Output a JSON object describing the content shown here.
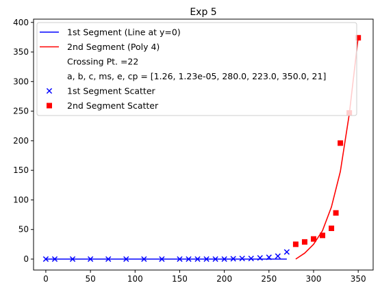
{
  "chart_data": {
    "type": "scatter",
    "title": "Exp 5",
    "xlabel": "",
    "ylabel": "",
    "xlim": [
      -13.75,
      366.75
    ],
    "ylim": [
      -18.5,
      405.5
    ],
    "xticks": [
      0,
      50,
      100,
      150,
      200,
      250,
      300,
      350
    ],
    "yticks": [
      0,
      50,
      100,
      150,
      200,
      250,
      300,
      350,
      400
    ],
    "grid": false,
    "legend_position": "top-left",
    "series": [
      {
        "name": "1st Segment (Line at y=0)",
        "kind": "line",
        "color": "#0000ff",
        "x": [
          0,
          270
        ],
        "y": [
          0,
          0
        ]
      },
      {
        "name": "2nd Segment (Poly 4)",
        "kind": "line",
        "color": "#ff0000",
        "x": [
          280,
          290,
          300,
          310,
          320,
          330,
          340,
          345,
          350
        ],
        "y": [
          0,
          10,
          25,
          48,
          88,
          148,
          245,
          310,
          375
        ]
      },
      {
        "name": "1st Segment Scatter",
        "kind": "scatter",
        "marker": "x",
        "color": "#0000ff",
        "x": [
          0,
          10,
          30,
          50,
          70,
          90,
          110,
          130,
          150,
          160,
          170,
          180,
          190,
          200,
          210,
          220,
          230,
          240,
          250,
          260,
          270
        ],
        "y": [
          0,
          0,
          0,
          0,
          0,
          0,
          0,
          0,
          0,
          0,
          0,
          0,
          0,
          0,
          0.5,
          1,
          1,
          2,
          3,
          5,
          12
        ]
      },
      {
        "name": "2nd Segment Scatter",
        "kind": "scatter",
        "marker": "square",
        "color": "#ff0000",
        "x": [
          280,
          290,
          300,
          310,
          320,
          325,
          330,
          340,
          350
        ],
        "y": [
          25,
          29,
          34,
          40,
          52,
          78,
          196,
          247,
          374
        ]
      }
    ],
    "legend_extra": [
      "Crossing Pt. =22",
      "a, b, c, ms, e, cp = [1.26, 1.23e-05, 280.0, 223.0, 350.0, 21]"
    ]
  }
}
